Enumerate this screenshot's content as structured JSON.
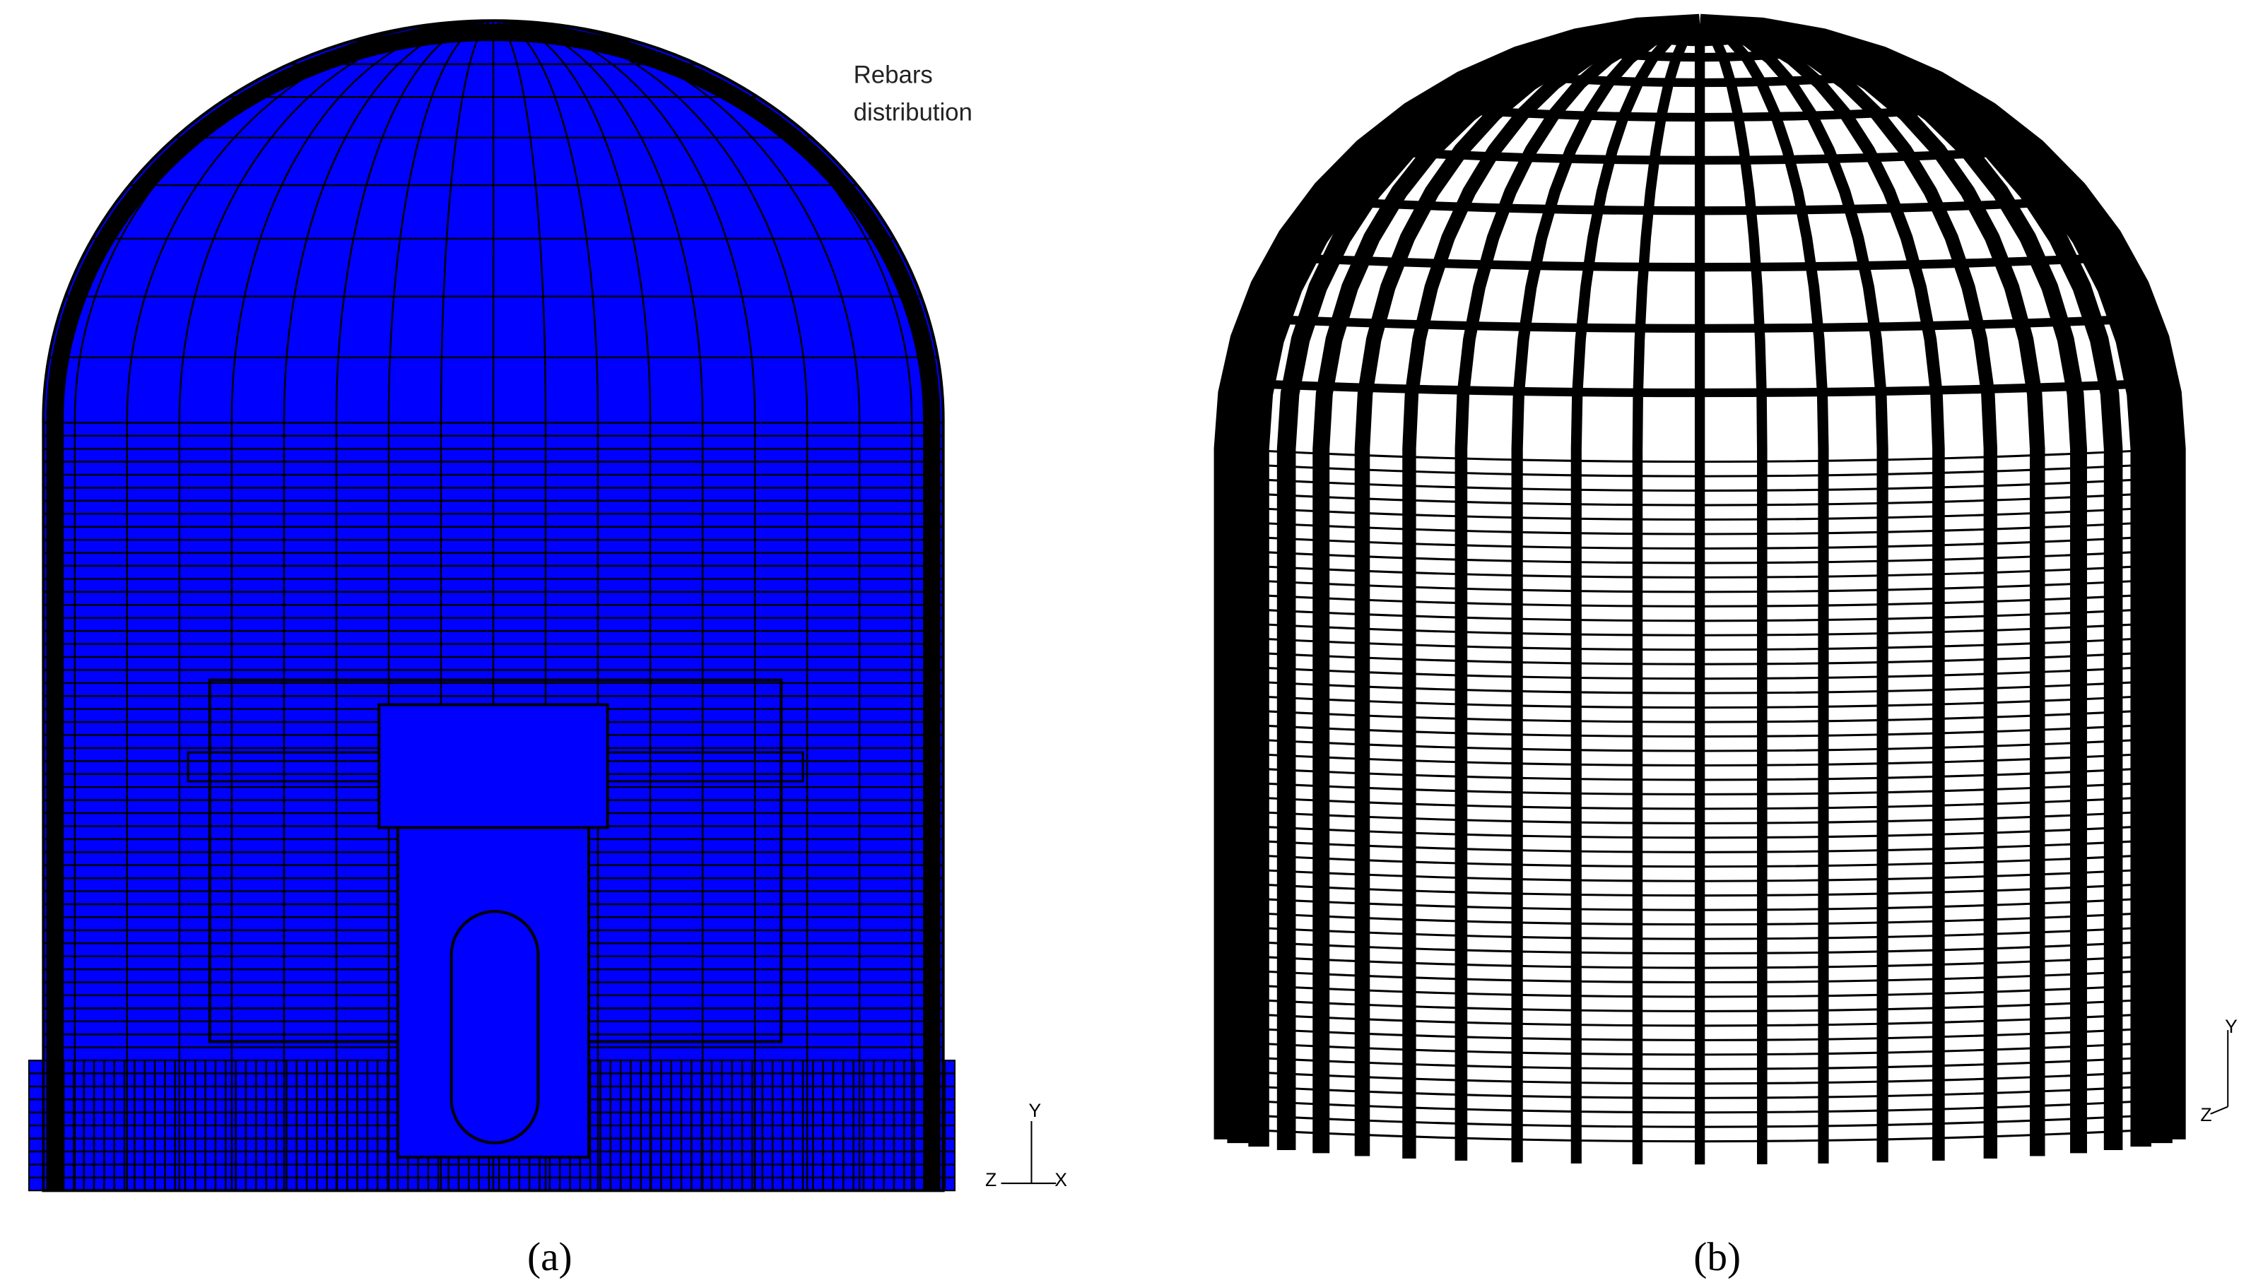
{
  "panels": [
    {
      "label": "(a)",
      "annotation": [
        "Rebars",
        "distribution"
      ],
      "axes": {
        "y": "Y",
        "z": "Z",
        "x": "X"
      }
    },
    {
      "label": "(b)",
      "axes": {
        "y": "Y",
        "z": "Z"
      }
    }
  ]
}
